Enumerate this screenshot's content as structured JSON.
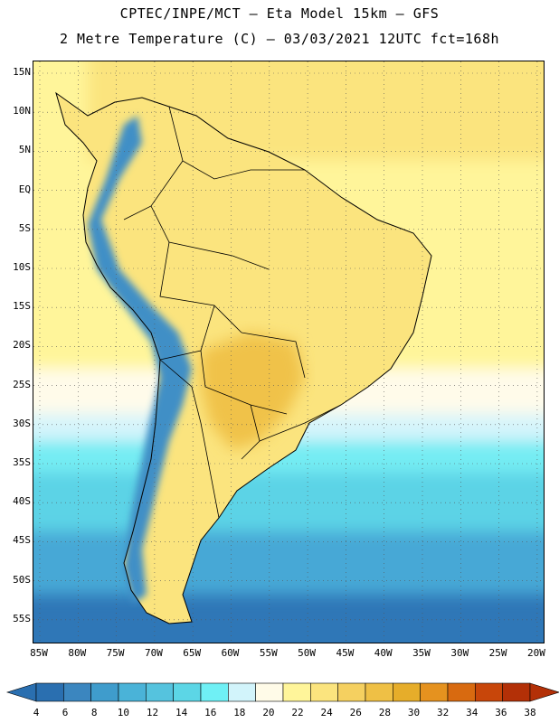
{
  "title_line1": "CPTEC/INPE/MCT —  Eta Model 15km — GFS",
  "title_line2": "2 Metre Temperature (C) — 03/03/2021 12UTC fct=168h",
  "lat_labels": [
    "15N",
    "10N",
    "5N",
    "EQ",
    "5S",
    "10S",
    "15S",
    "20S",
    "25S",
    "30S",
    "35S",
    "40S",
    "45S",
    "50S",
    "55S"
  ],
  "lon_labels": [
    "85W",
    "80W",
    "75W",
    "70W",
    "65W",
    "60W",
    "55W",
    "50W",
    "45W",
    "40W",
    "35W",
    "30W",
    "25W",
    "20W"
  ],
  "colorbar": {
    "levels": [
      "4",
      "6",
      "8",
      "10",
      "12",
      "14",
      "16",
      "18",
      "20",
      "22",
      "24",
      "26",
      "28",
      "30",
      "32",
      "34",
      "36",
      "38"
    ],
    "colors": [
      "#2a6fb0",
      "#3b86bf",
      "#3f9ccc",
      "#4ab3d8",
      "#55c3de",
      "#5cd6e6",
      "#6ff0f5",
      "#d2f4fb",
      "#fffbe8",
      "#fff59a",
      "#fbe47e",
      "#f5d060",
      "#efc045",
      "#e6ad2a",
      "#e5921f",
      "#d86a10",
      "#c8460a",
      "#b33007"
    ]
  },
  "map_colors": {
    "deep_ocean": "#2f77b7",
    "mid_ocean": "#47a8d6",
    "cool_ocean": "#5cd3e6",
    "cyan_ocean": "#74ecf3",
    "pale_ocean": "#d4f4fb",
    "cream": "#fffbea",
    "yellow": "#fff59a",
    "warm_yellow": "#fbe47e",
    "orange": "#f0c24a",
    "hot": "#e8ad2d",
    "andes": "#3f8fc6",
    "coast": "#000000"
  }
}
